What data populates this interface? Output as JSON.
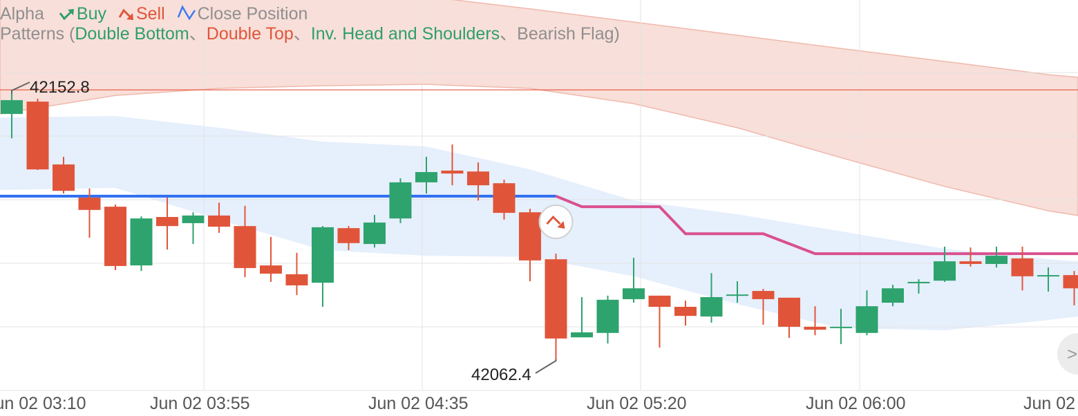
{
  "legend": {
    "alpha": "Alpha",
    "buy": "Buy",
    "sell": "Sell",
    "close_position": "Close Position",
    "patterns_prefix": "Patterns (",
    "patterns": [
      {
        "label": "Double Bottom",
        "signal": "bullish"
      },
      {
        "label": "Double Top",
        "signal": "bearish"
      },
      {
        "label": "Inv. Head and Shoulders",
        "signal": "bullish"
      },
      {
        "label": "Bearish Flag",
        "signal": "neutral"
      }
    ],
    "separator": "、",
    "patterns_suffix": ")"
  },
  "colors": {
    "up": "#2ea36e",
    "down": "#e0553a",
    "buy": "#2e9e6a",
    "sell": "#e0553a",
    "close": "#3d7cf0",
    "entry_line": "#2f6ff0",
    "stop_line": "#d9508f",
    "resistance": "#e8503a",
    "upper_band": "#f6d4cc",
    "lower_band": "#dde9fb"
  },
  "icons": {
    "buy": "arrow-up-right-icon",
    "sell": "arrow-down-right-icon",
    "close": "zigzag-icon",
    "scroll": "chevron-right-icon"
  },
  "chart_data": {
    "type": "candlestick",
    "x_tick_labels": [
      "Jun 02 03:10",
      "Jun 02 03:55",
      "Jun 02 04:35",
      "Jun 02 05:20",
      "Jun 02 06:00",
      "Jun 02"
    ],
    "high_label": "42152.8",
    "low_label": "42062.4",
    "grid": true,
    "candles": [
      [
        42146.0,
        42152.8,
        42137.7,
        42150.7
      ],
      [
        42150.2,
        42151.2,
        42126.9,
        42127.1
      ],
      [
        42128.8,
        42131.4,
        42118.9,
        42119.8
      ],
      [
        42117.5,
        42120.6,
        42103.8,
        42113.3
      ],
      [
        42114.4,
        42115.1,
        42092.8,
        42094.2
      ],
      [
        42094.4,
        42111.1,
        42092.5,
        42110.4
      ],
      [
        42110.9,
        42117.5,
        42099.8,
        42107.8
      ],
      [
        42108.8,
        42112.5,
        42101.7,
        42111.4
      ],
      [
        42111.4,
        42115.8,
        42105.5,
        42107.6
      ],
      [
        42107.8,
        42114.7,
        42090.4,
        42093.5
      ],
      [
        42094.4,
        42104.1,
        42088.8,
        42091.6
      ],
      [
        42091.4,
        42098.7,
        42084.3,
        42087.6
      ],
      [
        42088.5,
        42107.8,
        42080.3,
        42107.4
      ],
      [
        42107.1,
        42107.8,
        42099.6,
        42102.0
      ],
      [
        42101.7,
        42111.6,
        42100.5,
        42109.0
      ],
      [
        42110.4,
        42124.1,
        42108.8,
        42122.7
      ],
      [
        42122.7,
        42131.4,
        42118.9,
        42126.2
      ],
      [
        42126.7,
        42135.6,
        42121.7,
        42125.7
      ],
      [
        42126.4,
        42129.5,
        42116.5,
        42121.7
      ],
      [
        42122.4,
        42123.6,
        42110.0,
        42112.3
      ],
      [
        42112.5,
        42113.7,
        42089.0,
        42096.1
      ],
      [
        42096.5,
        42098.4,
        42062.4,
        42069.5
      ],
      [
        42069.9,
        42083.6,
        42069.9,
        42071.6
      ],
      [
        42071.4,
        42084.1,
        42067.8,
        42082.7
      ],
      [
        42082.9,
        42097.0,
        42081.7,
        42086.6
      ],
      [
        42084.1,
        42084.1,
        42066.4,
        42080.3
      ],
      [
        42080.3,
        42082.4,
        42073.9,
        42077.2
      ],
      [
        42077.0,
        42091.8,
        42074.9,
        42083.6
      ],
      [
        42084.3,
        42089.0,
        42081.7,
        42084.5
      ],
      [
        42085.7,
        42086.4,
        42074.2,
        42082.9
      ],
      [
        42083.4,
        42083.4,
        42069.7,
        42073.5
      ],
      [
        42073.5,
        42080.5,
        42070.6,
        42072.5
      ],
      [
        42073.2,
        42079.6,
        42067.6,
        42073.5
      ],
      [
        42071.4,
        42085.9,
        42070.6,
        42080.5
      ],
      [
        42081.7,
        42087.8,
        42080.5,
        42086.6
      ],
      [
        42088.3,
        42089.7,
        42084.8,
        42088.8
      ],
      [
        42089.2,
        42100.8,
        42088.8,
        42095.8
      ],
      [
        42095.8,
        42100.5,
        42094.0,
        42094.9
      ],
      [
        42094.9,
        42100.8,
        42093.7,
        42097.7
      ],
      [
        42096.8,
        42100.8,
        42085.9,
        42090.7
      ],
      [
        42090.9,
        42093.7,
        42085.5,
        42091.1
      ],
      [
        42091.1,
        42092.5,
        42080.8,
        42086.6
      ]
    ],
    "candle_fields": [
      "open",
      "high",
      "low",
      "close"
    ],
    "upper_band": {
      "at_candle": [
        0,
        4,
        8,
        12,
        16,
        20,
        24,
        28,
        32,
        36,
        40,
        41
      ],
      "top": [
        42203.9,
        42199.4,
        42194.9,
        42190.5,
        42186.0,
        42181.8,
        42177.3,
        42172.8,
        42168.3,
        42163.9,
        42159.4,
        42158.5
      ],
      "bottom": [
        42146.0,
        42152.3,
        42154.7,
        42155.6,
        42156.1,
        42154.7,
        42149.5,
        42141.3,
        42131.1,
        42121.3,
        42113.0,
        42111.4
      ]
    },
    "lower_band": {
      "at_candle": [
        0,
        4,
        8,
        12,
        16,
        20,
        24,
        28,
        32,
        36,
        40,
        41
      ],
      "top": [
        42144.8,
        42145.3,
        42141.3,
        42136.6,
        42134.9,
        42127.1,
        42116.5,
        42111.8,
        42106.0,
        42100.1,
        42096.5,
        42095.8
      ],
      "bottom": [
        42120.1,
        42120.8,
        42110.0,
        42099.6,
        42097.7,
        42097.3,
        42090.7,
        42081.2,
        42073.0,
        42072.3,
        42075.8,
        42077.0
      ]
    },
    "resistance_line": 42154.2,
    "entry_line": {
      "from_candle": 0,
      "to_candle": 21,
      "price": 42118.0
    },
    "stop_line": {
      "at_candle": [
        21,
        22,
        25,
        26,
        29,
        31,
        41
      ],
      "price": [
        42118.0,
        42114.4,
        42114.4,
        42105.2,
        42105.2,
        42098.4,
        42098.4
      ]
    },
    "signals": [
      {
        "type": "sell",
        "at_candle": 21
      }
    ]
  }
}
